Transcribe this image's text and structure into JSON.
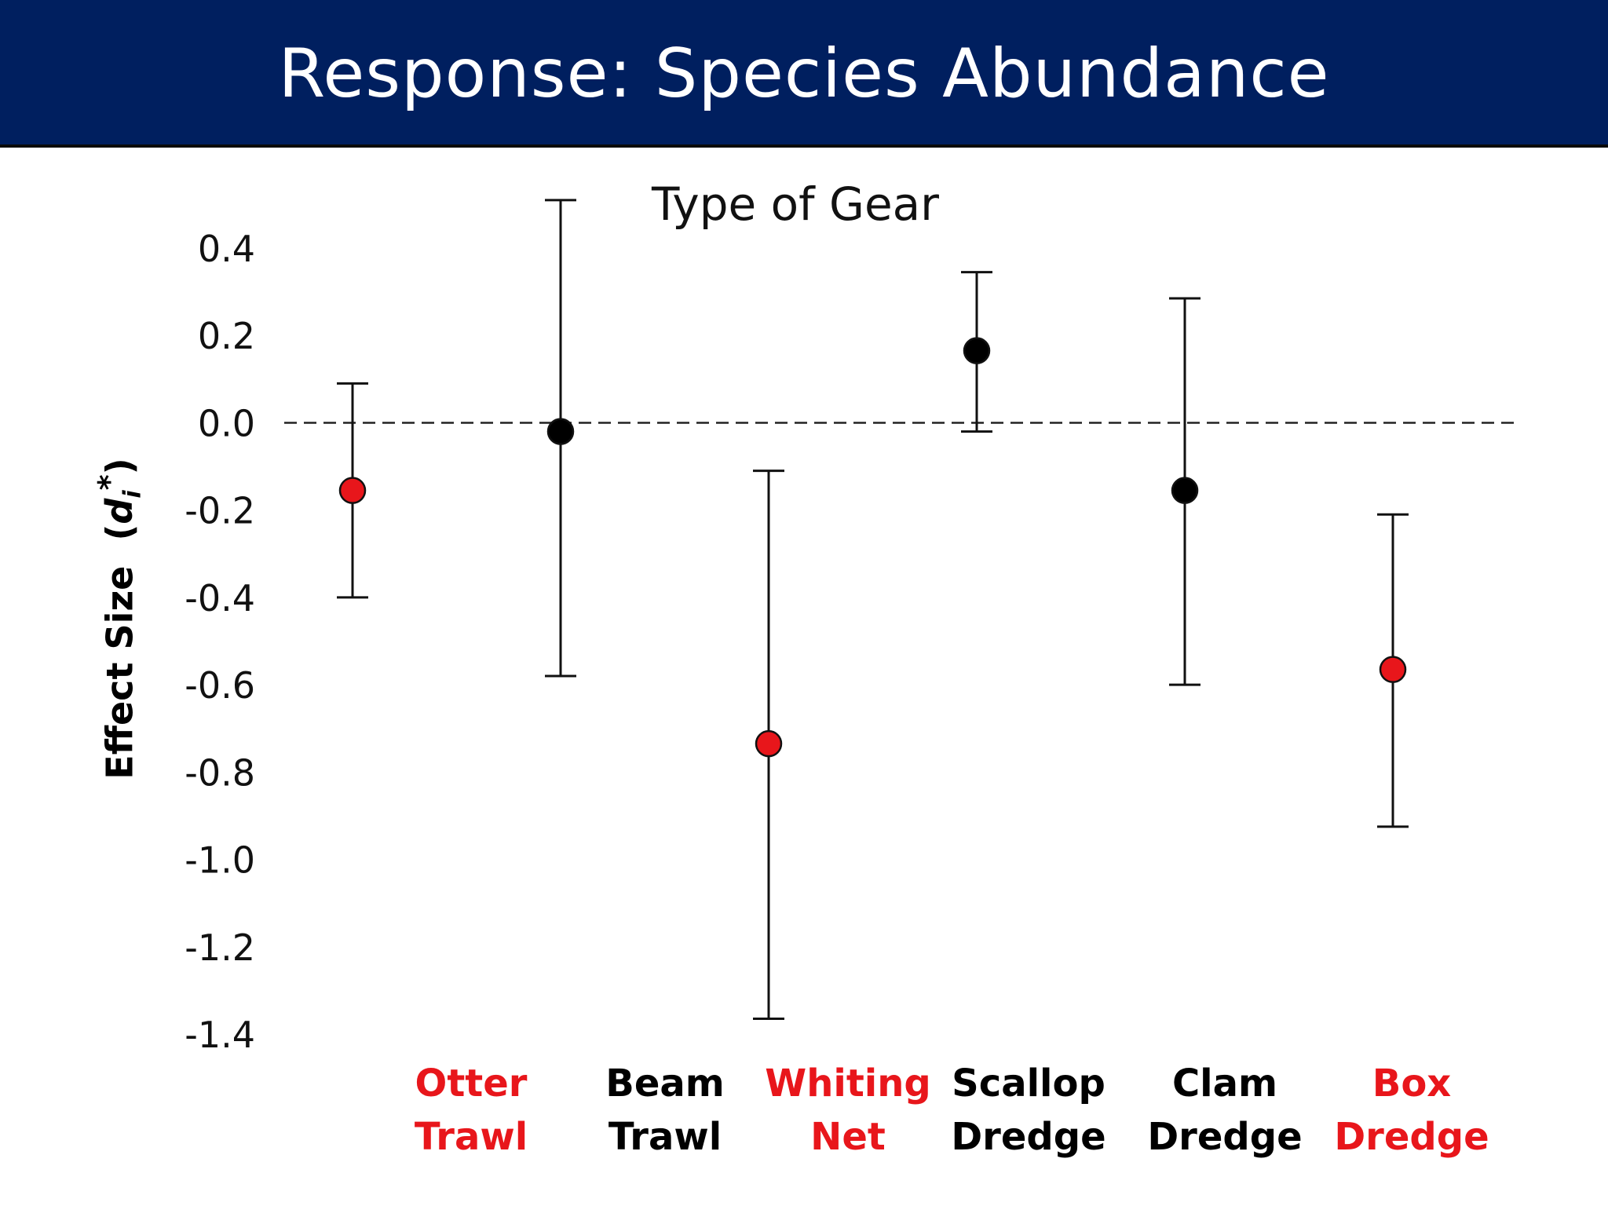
{
  "slide": {
    "title": "Response: Species Abundance"
  },
  "chart_data": {
    "type": "scatter",
    "title": "Type of Gear",
    "ylabel": "Effect Size",
    "ylabel_symbol": "d",
    "ylabel_subscript": "i",
    "ylabel_superscript": "*",
    "ylim": [
      -1.4,
      0.4
    ],
    "yticks": [
      "0.4",
      "0.2",
      "0.0",
      "-0.2",
      "-0.4",
      "-0.6",
      "-0.8",
      "-1.0",
      "-1.2",
      "-1.4"
    ],
    "reference_line": 0.0,
    "colors": {
      "highlight": "#e8161b",
      "default": "#000000"
    },
    "categories": [
      {
        "line1": "Otter",
        "line2": "Trawl",
        "color": "#e8161b",
        "y": -0.155,
        "lower": -0.4,
        "upper": 0.09
      },
      {
        "line1": "Beam",
        "line2": "Trawl",
        "color": "#000000",
        "y": -0.02,
        "lower": -0.58,
        "upper": 0.51
      },
      {
        "line1": "Whiting",
        "line2": "Net",
        "color": "#e8161b",
        "y": -0.735,
        "lower": -1.365,
        "upper": -0.11
      },
      {
        "line1": "Scallop",
        "line2": "Dredge",
        "color": "#000000",
        "y": 0.165,
        "lower": -0.02,
        "upper": 0.345
      },
      {
        "line1": "Clam",
        "line2": "Dredge",
        "color": "#000000",
        "y": -0.155,
        "lower": -0.6,
        "upper": 0.285
      },
      {
        "line1": "Box",
        "line2": "Dredge",
        "color": "#e8161b",
        "y": -0.565,
        "lower": -0.925,
        "upper": -0.21
      }
    ]
  }
}
